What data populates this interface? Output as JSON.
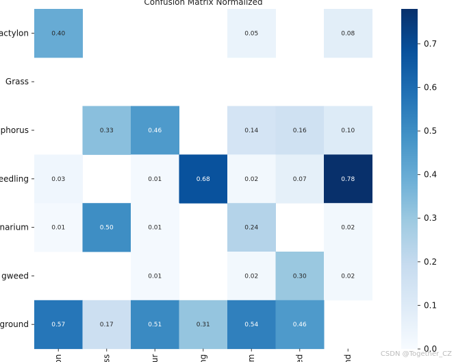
{
  "chart_data": {
    "type": "heatmap",
    "title": "Confusion Matrix Normalized",
    "row_labels": [
      "actylon",
      "Grass",
      "phorus",
      "eedling",
      "narium",
      "gweed",
      "ground"
    ],
    "col_labels": [
      "on",
      "ss",
      "ur",
      "ng",
      "m",
      "ed",
      "nd"
    ],
    "values": [
      [
        0.4,
        null,
        null,
        null,
        0.05,
        null,
        0.08
      ],
      [
        null,
        null,
        null,
        null,
        null,
        null,
        null
      ],
      [
        null,
        0.33,
        0.46,
        null,
        0.14,
        0.16,
        0.1
      ],
      [
        0.03,
        null,
        0.01,
        0.68,
        0.02,
        0.07,
        0.78
      ],
      [
        0.01,
        0.5,
        0.01,
        null,
        0.24,
        null,
        0.02
      ],
      [
        null,
        null,
        0.01,
        null,
        0.02,
        0.3,
        0.02
      ],
      [
        0.57,
        0.17,
        0.51,
        0.31,
        0.54,
        0.46,
        null
      ]
    ],
    "colorbar": {
      "min": 0.0,
      "max": 0.78,
      "ticks": [
        "0.0",
        "0.1",
        "0.2",
        "0.3",
        "0.4",
        "0.5",
        "0.6",
        "0.7"
      ],
      "colormap": [
        "#f7fbff",
        "#deebf7",
        "#c6dbef",
        "#9ecae1",
        "#6baed6",
        "#4292c6",
        "#2171b5",
        "#08519c",
        "#08306b"
      ]
    }
  },
  "watermark": "CSDN @Together_CZ"
}
